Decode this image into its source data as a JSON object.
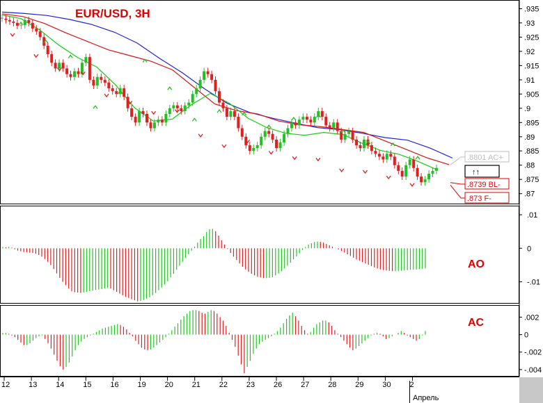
{
  "chart_data": [
    {
      "type": "candlestick",
      "title": "EUR/USD, 3H",
      "x_tick_labels": [
        "12",
        "13",
        "14",
        "15",
        "16",
        "19",
        "20",
        "21",
        "22",
        "23",
        "26",
        "27",
        "28",
        "29",
        "30",
        "2"
      ],
      "x_sublabel": "Апрель",
      "y_tick_labels": [
        ".935",
        ".93",
        ".925",
        ".92",
        ".915",
        ".91",
        ".905",
        ".9",
        ".895",
        ".89",
        ".885",
        ".88",
        ".875",
        ".87"
      ],
      "ylim": [
        0.8665,
        0.9378
      ],
      "series": [
        {
          "name": "closes",
          "values": [
            0.9315,
            0.931,
            0.9305,
            0.93,
            0.929,
            0.9292,
            0.931,
            0.93,
            0.928,
            0.927,
            0.925,
            0.922,
            0.919,
            0.916,
            0.914,
            0.916,
            0.914,
            0.912,
            0.911,
            0.913,
            0.912,
            0.916,
            0.918,
            0.91,
            0.908,
            0.911,
            0.91,
            0.909,
            0.907,
            0.906,
            0.905,
            0.907,
            0.904,
            0.9,
            0.897,
            0.895,
            0.899,
            0.898,
            0.895,
            0.893,
            0.895,
            0.896,
            0.895,
            0.898,
            0.9,
            0.901,
            0.9,
            0.899,
            0.901,
            0.902,
            0.905,
            0.907,
            0.91,
            0.913,
            0.912,
            0.91,
            0.906,
            0.902,
            0.9,
            0.897,
            0.899,
            0.897,
            0.893,
            0.89,
            0.887,
            0.885,
            0.886,
            0.887,
            0.89,
            0.892,
            0.891,
            0.889,
            0.886,
            0.888,
            0.891,
            0.893,
            0.895,
            0.894,
            0.896,
            0.897,
            0.896,
            0.895,
            0.897,
            0.899,
            0.897,
            0.894,
            0.893,
            0.895,
            0.892,
            0.889,
            0.891,
            0.892,
            0.889,
            0.887,
            0.886,
            0.889,
            0.887,
            0.885,
            0.884,
            0.883,
            0.882,
            0.884,
            0.883,
            0.88,
            0.878,
            0.876,
            0.88,
            0.882,
            0.879,
            0.876,
            0.874,
            0.875,
            0.877,
            0.878,
            0.879
          ]
        },
        {
          "name": "ma_blue",
          "values": [
            0.9338,
            0.9333,
            0.9326,
            0.9312,
            0.9294,
            0.9267,
            0.9229,
            0.9175,
            0.9125,
            0.9068,
            0.9017,
            0.8985,
            0.8965,
            0.8948,
            0.8932,
            0.8925,
            0.8912,
            0.8897,
            0.8888,
            0.886,
            0.8825
          ]
        },
        {
          "name": "ma_red",
          "values": [
            0.9332,
            0.9322,
            0.9298,
            0.9265,
            0.9235,
            0.9205,
            0.9185,
            0.9165,
            0.9135,
            0.9075,
            0.9015,
            0.8992,
            0.898,
            0.8955,
            0.8942,
            0.8935,
            0.8925,
            0.8915,
            0.8885,
            0.8855,
            0.8825,
            0.8802
          ]
        },
        {
          "name": "ma_green",
          "values": [
            0.9328,
            0.9315,
            0.9275,
            0.9222,
            0.9178,
            0.9145,
            0.9082,
            0.9002,
            0.8955,
            0.8962,
            0.9012,
            0.9052,
            0.9018,
            0.8965,
            0.8932,
            0.8912,
            0.8905,
            0.8915,
            0.8908,
            0.8878,
            0.8852,
            0.8838,
            0.8813,
            0.8784
          ]
        },
        {
          "name": "arrows_up",
          "values": [
            0.93,
            0.9237,
            0.9184,
            0.9006,
            0.9058,
            0.9169,
            0.9072,
            0.8962,
            0.8992,
            0.8983,
            0.8938,
            0.8965,
            0.8975,
            0.8921,
            0.8882,
            0.8875,
            0.8828
          ]
        },
        {
          "name": "arrows_down",
          "values": [
            0.9256,
            0.9182,
            0.9135,
            0.9121,
            0.9043,
            0.9018,
            0.8982,
            0.8988,
            0.8902,
            0.8865,
            0.8882,
            0.8842,
            0.8823,
            0.8818,
            0.878,
            0.8775,
            0.8755,
            0.8729
          ]
        }
      ],
      "price_labels": [
        {
          "text": ".8801 AC+",
          "value": 0.8801,
          "color": "#bdbdbd"
        },
        {
          "text": ".8739 BL-",
          "value": 0.8739,
          "color": "#e00000"
        },
        {
          "text": ".873 F-",
          "value": 0.873,
          "color": "#e00000"
        }
      ],
      "signal_box": "↑↑",
      "colors": {
        "up": "#22c022",
        "down": "#e02020",
        "neutral": "#909090",
        "ma_blue": "#2020dd",
        "ma_red": "#dd1111",
        "ma_green": "#11cc11"
      }
    },
    {
      "type": "bar",
      "title": "AO",
      "y_tick_labels": [
        ".01",
        "0",
        "-.01"
      ],
      "ylim": [
        -0.0165,
        0.0125
      ],
      "values": [
        0.0004,
        0.0003,
        0.0004,
        0.0002,
        -0.0003,
        -0.0007,
        -0.0009,
        -0.0011,
        -0.0012,
        -0.0013,
        -0.0014,
        -0.0016,
        -0.002,
        -0.0025,
        -0.0032,
        -0.004,
        -0.005,
        -0.0062,
        -0.0075,
        -0.0088,
        -0.01,
        -0.011,
        -0.012,
        -0.0128,
        -0.0131,
        -0.0132,
        -0.0133,
        -0.0132,
        -0.013,
        -0.0128,
        -0.0126,
        -0.0124,
        -0.0123,
        -0.0122,
        -0.012,
        -0.0118,
        -0.012,
        -0.0125,
        -0.013,
        -0.0135,
        -0.014,
        -0.0145,
        -0.0148,
        -0.0152,
        -0.0155,
        -0.0158,
        -0.0157,
        -0.0154,
        -0.015,
        -0.0146,
        -0.014,
        -0.0133,
        -0.0125,
        -0.0117,
        -0.0108,
        -0.0098,
        -0.0087,
        -0.0076,
        -0.0064,
        -0.0052,
        -0.004,
        -0.0029,
        -0.0018,
        -0.0007,
        0.0005,
        0.0017,
        0.0028,
        0.0036,
        0.0049,
        0.0057,
        0.0058,
        0.0051,
        0.0038,
        0.0024,
        0.0011,
        -0.0002,
        -0.0014,
        -0.0025,
        -0.0035,
        -0.0045,
        -0.0055,
        -0.0063,
        -0.007,
        -0.0076,
        -0.0081,
        -0.0085,
        -0.0087,
        -0.0089,
        -0.0089,
        -0.0088,
        -0.0086,
        -0.0081,
        -0.0075,
        -0.0068,
        -0.006,
        -0.0052,
        -0.0043,
        -0.0033,
        -0.0024,
        -0.0015,
        -0.0005,
        0.0004,
        0.0011,
        0.0015,
        0.0019,
        0.002,
        0.0019,
        0.0017,
        0.0013,
        0.0009,
        0.0005,
        0.0001,
        -0.0003,
        -0.0008,
        -0.0013,
        -0.0018,
        -0.0023,
        -0.0028,
        -0.0033,
        -0.0037,
        -0.0041,
        -0.0045,
        -0.0049,
        -0.0053,
        -0.0057,
        -0.006,
        -0.0063,
        -0.0065,
        -0.0066,
        -0.0067,
        -0.0068,
        -0.0068,
        -0.0068,
        -0.0067,
        -0.0066,
        -0.0065,
        -0.0064,
        -0.0064,
        -0.0063,
        -0.0062,
        -0.0061,
        -0.006
      ]
    },
    {
      "type": "bar",
      "title": "AC",
      "y_tick_labels": [
        ".002",
        "0",
        "-.002",
        "-.004"
      ],
      "ylim": [
        -0.0048,
        0.0033
      ],
      "values": [
        0.0002,
        0.0002,
        0.0001,
        -0.0001,
        -0.0003,
        -0.0006,
        -0.0009,
        -0.0012,
        -0.0012,
        -0.001,
        -0.0007,
        -0.0004,
        -0.0002,
        -0.0001,
        -0.0005,
        -0.001,
        -0.0016,
        -0.0023,
        -0.003,
        -0.0036,
        -0.004,
        -0.0037,
        -0.0032,
        -0.0025,
        -0.0018,
        -0.0012,
        -0.0008,
        -0.0005,
        -0.0003,
        -0.0001,
        0.0001,
        0.0003,
        0.0005,
        0.0007,
        0.0008,
        0.0009,
        0.001,
        0.0011,
        0.0012,
        0.0011,
        0.0009,
        0.0006,
        0.0002,
        -0.0002,
        -0.0007,
        -0.0011,
        -0.0015,
        -0.0017,
        -0.0018,
        -0.0017,
        -0.0015,
        -0.0012,
        -0.0009,
        -0.0006,
        -0.0003,
        0.0001,
        0.0005,
        0.0009,
        0.0013,
        0.0017,
        0.0021,
        0.0024,
        0.0027,
        0.0028,
        0.0028,
        0.0027,
        0.0025,
        0.0024,
        0.0026,
        0.0028,
        0.0027,
        0.0024,
        0.002,
        0.0016,
        0.001,
        0.0002,
        -0.0006,
        -0.0014,
        -0.0024,
        -0.0034,
        -0.0044,
        -0.0037,
        -0.003,
        -0.0022,
        -0.0016,
        -0.0011,
        -0.0008,
        -0.0006,
        -0.0004,
        -0.0002,
        0.0001,
        0.0004,
        0.0008,
        0.0013,
        0.0018,
        0.0022,
        0.0025,
        0.0021,
        0.0016,
        0.001,
        0.0005,
        0.0001,
        0.0003,
        0.0008,
        0.0012,
        0.0014,
        0.0016,
        0.0016,
        0.0014,
        0.001,
        0.0005,
        0.0001,
        -0.0003,
        -0.0007,
        -0.0011,
        -0.0015,
        -0.0018,
        -0.0016,
        -0.0013,
        -0.001,
        -0.0007,
        -0.0004,
        -0.0001,
        0.0001,
        0.0002,
        0.0001,
        -0.0002,
        -0.0005,
        -0.0004,
        -0.0002,
        0,
        0.0002,
        0.0004,
        0.0002,
        -0.0001,
        -0.0003,
        -0.0005,
        -0.0007,
        -0.0005,
        -0.0001,
        0.0004
      ]
    }
  ]
}
